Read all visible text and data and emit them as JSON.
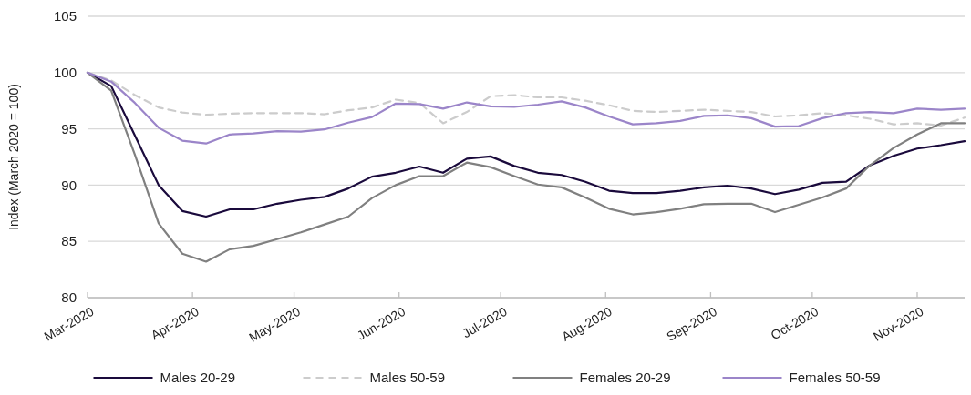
{
  "chart_data": {
    "type": "line",
    "ylabel": "Index (March 2020 = 100)",
    "x": [
      "2020-03-01",
      "2020-03-08",
      "2020-03-15",
      "2020-03-22",
      "2020-03-29",
      "2020-04-05",
      "2020-04-12",
      "2020-04-19",
      "2020-04-26",
      "2020-05-03",
      "2020-05-10",
      "2020-05-17",
      "2020-05-24",
      "2020-05-31",
      "2020-06-07",
      "2020-06-14",
      "2020-06-21",
      "2020-06-28",
      "2020-07-05",
      "2020-07-12",
      "2020-07-19",
      "2020-07-26",
      "2020-08-02",
      "2020-08-09",
      "2020-08-16",
      "2020-08-23",
      "2020-08-30",
      "2020-09-06",
      "2020-09-13",
      "2020-09-20",
      "2020-09-27",
      "2020-10-04",
      "2020-10-11",
      "2020-10-18",
      "2020-10-25",
      "2020-11-01",
      "2020-11-08",
      "2020-11-15"
    ],
    "series": [
      {
        "name": "Males 20-29",
        "color": "#1a0a3c",
        "values": [
          100,
          98.8,
          94.4,
          90.0,
          87.7,
          87.2,
          87.85,
          87.85,
          88.35,
          88.7,
          88.95,
          89.7,
          90.75,
          91.1,
          91.65,
          91.1,
          92.35,
          92.55,
          91.7,
          91.1,
          90.9,
          90.3,
          89.5,
          89.3,
          89.3,
          89.5,
          89.8,
          89.95,
          89.7,
          89.2,
          89.6,
          90.2,
          90.3,
          91.75,
          92.6,
          93.25,
          93.55,
          93.9
        ]
      },
      {
        "name": "Males 50-59",
        "color": "#cccccc",
        "line_style": "dashed",
        "values": [
          100,
          99.3,
          98.0,
          96.9,
          96.45,
          96.25,
          96.35,
          96.4,
          96.4,
          96.4,
          96.3,
          96.65,
          96.9,
          97.6,
          97.3,
          95.5,
          96.5,
          97.9,
          98.0,
          97.8,
          97.8,
          97.5,
          97.1,
          96.6,
          96.5,
          96.6,
          96.7,
          96.6,
          96.5,
          96.1,
          96.2,
          96.4,
          96.2,
          95.9,
          95.4,
          95.5,
          95.3,
          96.0
        ]
      },
      {
        "name": "Females 20-29",
        "color": "#808080",
        "values": [
          100,
          98.4,
          92.7,
          86.6,
          83.9,
          83.2,
          84.3,
          84.6,
          85.2,
          85.8,
          86.5,
          87.2,
          88.85,
          90.0,
          90.8,
          90.8,
          92.0,
          91.6,
          90.8,
          90.05,
          89.8,
          88.9,
          87.9,
          87.4,
          87.6,
          87.9,
          88.3,
          88.35,
          88.35,
          87.6,
          88.25,
          88.9,
          89.7,
          91.75,
          93.3,
          94.5,
          95.5,
          95.5
        ]
      },
      {
        "name": "Females 50-59",
        "color": "#9b85c9",
        "values": [
          100,
          99.2,
          97.3,
          95.1,
          93.95,
          93.7,
          94.5,
          94.6,
          94.8,
          94.75,
          94.95,
          95.55,
          96.05,
          97.25,
          97.2,
          96.8,
          97.35,
          97.0,
          96.95,
          97.15,
          97.45,
          96.9,
          96.1,
          95.4,
          95.5,
          95.7,
          96.15,
          96.2,
          95.95,
          95.2,
          95.25,
          95.95,
          96.4,
          96.5,
          96.4,
          96.8,
          96.7,
          96.8
        ]
      }
    ],
    "xlim": [
      "2020-03-01",
      "2020-11-15"
    ],
    "xticks": [
      {
        "value": "2020-03-01",
        "label": "Mar-2020"
      },
      {
        "value": "2020-04-01",
        "label": "Apr-2020"
      },
      {
        "value": "2020-05-01",
        "label": "May-2020"
      },
      {
        "value": "2020-06-01",
        "label": "Jun-2020"
      },
      {
        "value": "2020-07-01",
        "label": "Jul-2020"
      },
      {
        "value": "2020-08-01",
        "label": "Aug-2020"
      },
      {
        "value": "2020-09-01",
        "label": "Sep-2020"
      },
      {
        "value": "2020-10-01",
        "label": "Oct-2020"
      },
      {
        "value": "2020-11-01",
        "label": "Nov-2020"
      }
    ],
    "ylim": [
      80,
      105
    ],
    "yticks": [
      80,
      85,
      90,
      95,
      100,
      105
    ],
    "grid": "y",
    "legend": "bottom"
  }
}
